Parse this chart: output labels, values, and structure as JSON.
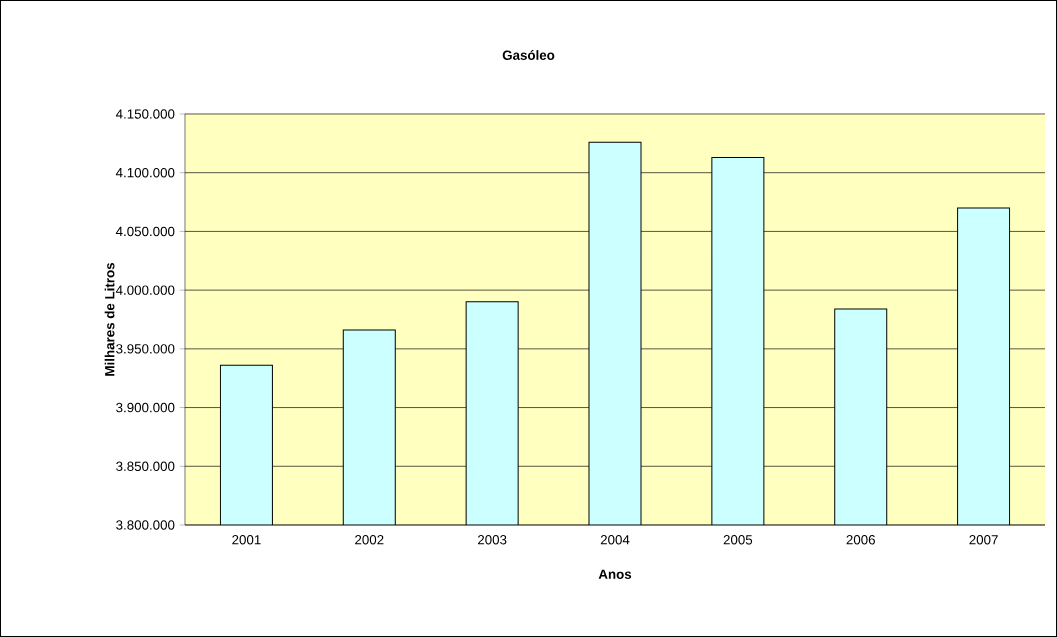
{
  "chart_data": {
    "type": "bar",
    "title": "Gasóleo",
    "xlabel": "Anos",
    "ylabel": "Milhares de Litros",
    "categories": [
      "2001",
      "2002",
      "2003",
      "2004",
      "2005",
      "2006",
      "2007"
    ],
    "values": [
      3936000,
      3966000,
      3990000,
      4126000,
      4113000,
      3984000,
      4070000
    ],
    "color": "#ccffff",
    "ylim": [
      3800000,
      4150000
    ],
    "yticks": [
      {
        "value": 3800000,
        "label": "3.800.000"
      },
      {
        "value": 3850000,
        "label": "3.850.000"
      },
      {
        "value": 3900000,
        "label": "3.900.000"
      },
      {
        "value": 3950000,
        "label": "3.950.000"
      },
      {
        "value": 4000000,
        "label": "4.000.000"
      },
      {
        "value": 4050000,
        "label": "4.050.000"
      },
      {
        "value": 4100000,
        "label": "4.100.000"
      },
      {
        "value": 4150000,
        "label": "4.150.000"
      }
    ],
    "grid": "y"
  }
}
